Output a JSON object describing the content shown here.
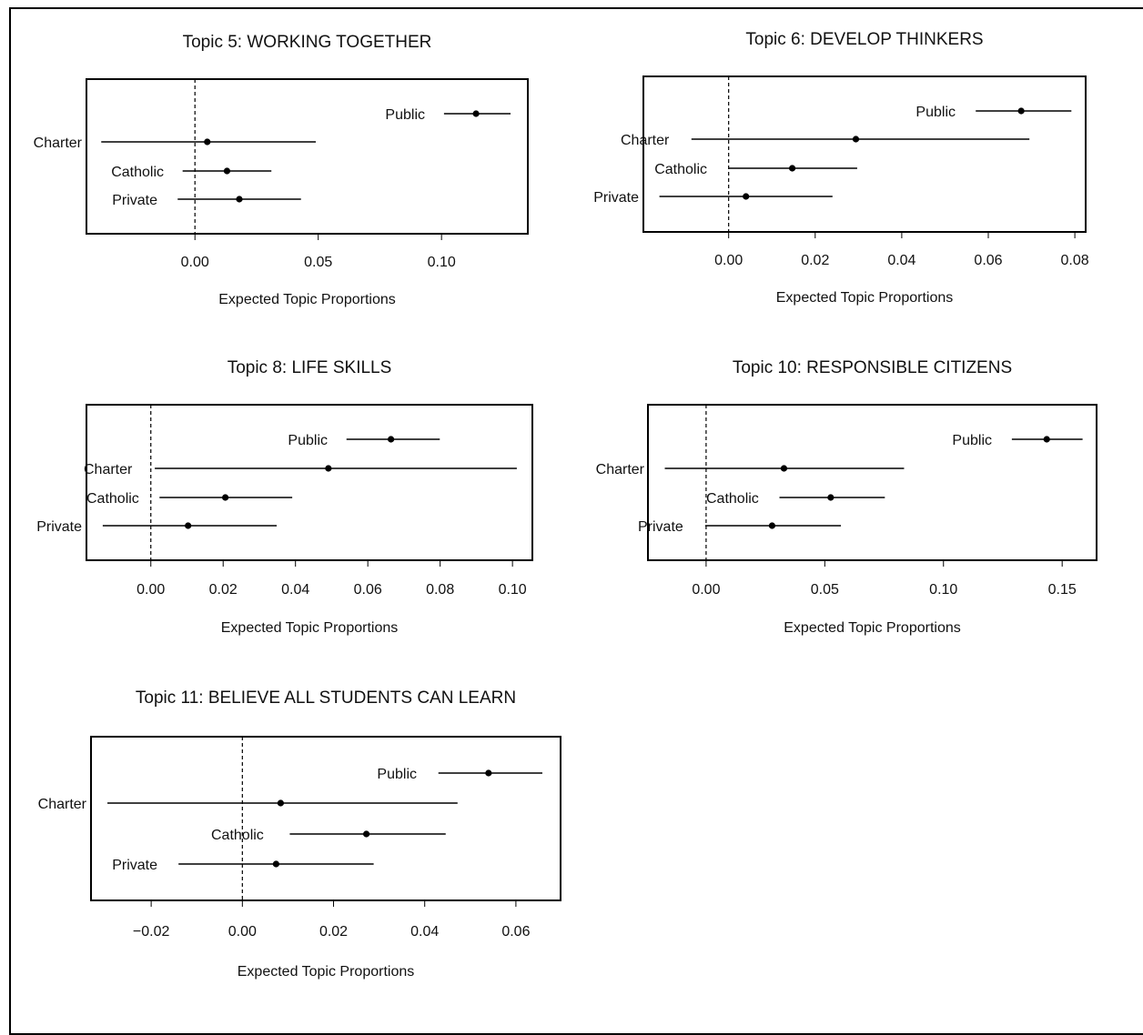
{
  "chart_data": [
    {
      "type": "scatter",
      "title": "Topic 5: WORKING TOGETHER",
      "xlabel": "Expected Topic Proportions",
      "xlim": [
        -0.044,
        0.135
      ],
      "xticks": [
        "0.00",
        "0.05",
        "0.10"
      ],
      "xtick_values": [
        0.0,
        0.05,
        0.1
      ],
      "reference_line": 0,
      "points": [
        {
          "label": "Public",
          "estimate": 0.114,
          "lower": 0.101,
          "upper": 0.128
        },
        {
          "label": "Charter",
          "estimate": 0.005,
          "lower": -0.038,
          "upper": 0.049
        },
        {
          "label": "Catholic",
          "estimate": 0.013,
          "lower": -0.005,
          "upper": 0.031
        },
        {
          "label": "Private",
          "estimate": 0.018,
          "lower": -0.007,
          "upper": 0.043
        }
      ]
    },
    {
      "type": "scatter",
      "title": "Topic 6: DEVELOP THINKERS",
      "xlabel": "Expected Topic Proportions",
      "xlim": [
        -0.0197,
        0.0825
      ],
      "xticks": [
        "0.00",
        "0.02",
        "0.04",
        "0.06",
        "0.08"
      ],
      "xtick_values": [
        0.0,
        0.02,
        0.04,
        0.06,
        0.08
      ],
      "reference_line": 0,
      "points": [
        {
          "label": "Public",
          "estimate": 0.0676,
          "lower": 0.0571,
          "upper": 0.0792
        },
        {
          "label": "Charter",
          "estimate": 0.0294,
          "lower": -0.0086,
          "upper": 0.0695
        },
        {
          "label": "Catholic",
          "estimate": 0.0147,
          "lower": 0.0,
          "upper": 0.0297
        },
        {
          "label": "Private",
          "estimate": 0.004,
          "lower": -0.016,
          "upper": 0.024
        }
      ]
    },
    {
      "type": "scatter",
      "title": "Topic 8: LIFE SKILLS",
      "xlabel": "Expected Topic Proportions",
      "xlim": [
        -0.0178,
        0.1055
      ],
      "xticks": [
        "0.00",
        "0.02",
        "0.04",
        "0.06",
        "0.08",
        "0.10"
      ],
      "xtick_values": [
        0.0,
        0.02,
        0.04,
        0.06,
        0.08,
        0.1
      ],
      "reference_line": 0,
      "points": [
        {
          "label": "Public",
          "estimate": 0.0664,
          "lower": 0.0541,
          "upper": 0.0799
        },
        {
          "label": "Charter",
          "estimate": 0.0491,
          "lower": 0.0011,
          "upper": 0.1012
        },
        {
          "label": "Catholic",
          "estimate": 0.0206,
          "lower": 0.0024,
          "upper": 0.0391
        },
        {
          "label": "Private",
          "estimate": 0.0103,
          "lower": -0.0133,
          "upper": 0.0348
        }
      ]
    },
    {
      "type": "scatter",
      "title": "Topic 10: RESPONSIBLE CITIZENS",
      "xlabel": "Expected Topic Proportions",
      "xlim": [
        -0.0245,
        0.1645
      ],
      "xticks": [
        "0.00",
        "0.05",
        "0.10",
        "0.15"
      ],
      "xtick_values": [
        0.0,
        0.05,
        0.1,
        0.15
      ],
      "reference_line": 0,
      "points": [
        {
          "label": "Public",
          "estimate": 0.1435,
          "lower": 0.1288,
          "upper": 0.1586
        },
        {
          "label": "Charter",
          "estimate": 0.0328,
          "lower": -0.0174,
          "upper": 0.0834
        },
        {
          "label": "Catholic",
          "estimate": 0.0525,
          "lower": 0.0309,
          "upper": 0.0753
        },
        {
          "label": "Private",
          "estimate": 0.0278,
          "lower": -0.0004,
          "upper": 0.0568
        }
      ]
    },
    {
      "type": "scatter",
      "title": "Topic 11: BELIEVE ALL STUDENTS CAN LEARN",
      "xlabel": "Expected Topic Proportions",
      "xlim": [
        -0.0332,
        0.0698
      ],
      "xticks": [
        "−0.02",
        "0.00",
        "0.02",
        "0.04",
        "0.06"
      ],
      "xtick_values": [
        -0.02,
        0.0,
        0.02,
        0.04,
        0.06
      ],
      "reference_line": 0,
      "points": [
        {
          "label": "Public",
          "estimate": 0.054,
          "lower": 0.043,
          "upper": 0.0658
        },
        {
          "label": "Charter",
          "estimate": 0.0084,
          "lower": -0.0296,
          "upper": 0.0472
        },
        {
          "label": "Catholic",
          "estimate": 0.0272,
          "lower": 0.0104,
          "upper": 0.0446
        },
        {
          "label": "Private",
          "estimate": 0.0074,
          "lower": -0.014,
          "upper": 0.0288
        }
      ]
    }
  ]
}
